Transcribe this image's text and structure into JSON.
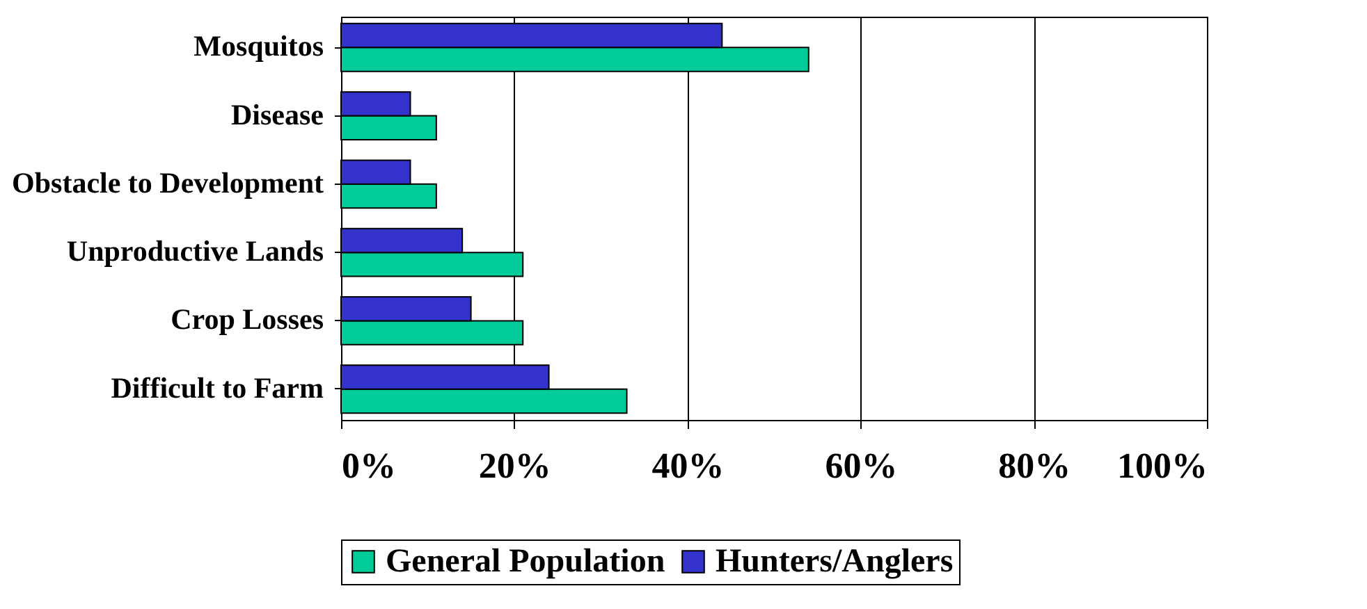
{
  "chart_data": {
    "type": "bar",
    "orientation": "horizontal",
    "categories": [
      "Mosquitos",
      "Disease",
      "Obstacle to Development",
      "Unproductive Lands",
      "Crop Losses",
      "Difficult to Farm"
    ],
    "series": [
      {
        "name": "General Population",
        "color": "#00cc99",
        "values": [
          54,
          11,
          11,
          21,
          21,
          33
        ]
      },
      {
        "name": "Hunters/Anglers",
        "color": "#3333cc",
        "values": [
          44,
          8,
          8,
          14,
          15,
          24
        ]
      }
    ],
    "xlim": [
      0,
      100
    ],
    "xticks": [
      {
        "value": 0,
        "label": "0%"
      },
      {
        "value": 20,
        "label": "20%"
      },
      {
        "value": 40,
        "label": "40%"
      },
      {
        "value": 60,
        "label": "60%"
      },
      {
        "value": 80,
        "label": "80%"
      },
      {
        "value": 100,
        "label": "100%"
      }
    ],
    "grid": "x",
    "legend": "bottom"
  }
}
